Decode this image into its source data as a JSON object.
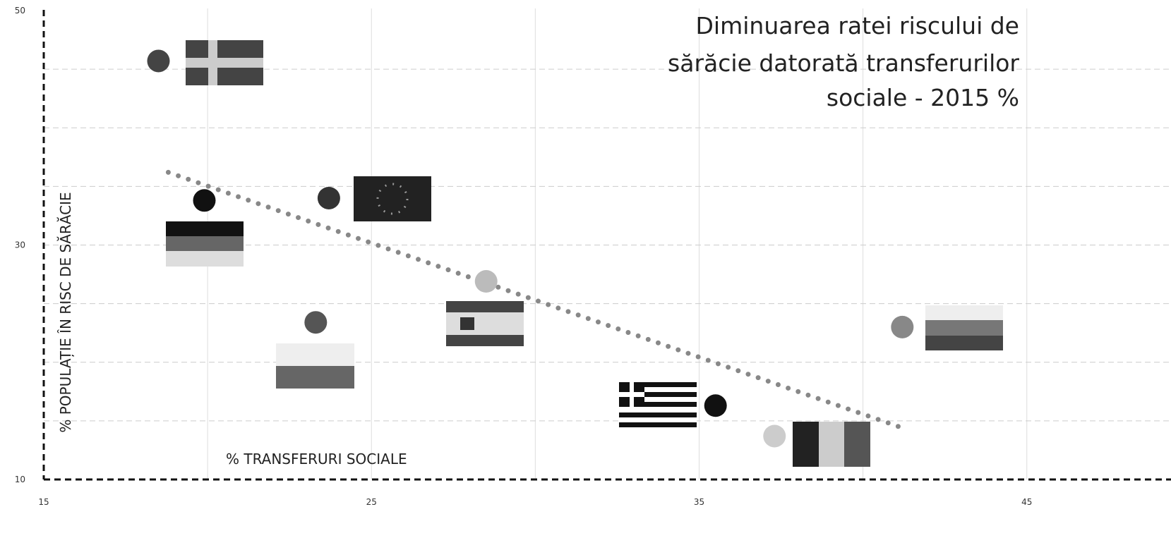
{
  "chart_data": {
    "type": "scatter",
    "title_lines": [
      "Diminuarea ratei riscului de",
      "sărăcie datorată transferurilor",
      "sociale - 2015 %"
    ],
    "x_label": "% TRANSFERURI SOCIALE",
    "y_label": "% POPULAȚIE ÎN RISC DE SĂRĂCIE",
    "x": [
      18.5,
      19.9,
      23.7,
      23.3,
      28.5,
      35.5,
      37.3,
      41.2
    ],
    "y": [
      45.7,
      33.8,
      34.0,
      23.4,
      26.9,
      16.3,
      13.7,
      23.0
    ],
    "colors": [
      "#444444",
      "#111111",
      "#333333",
      "#555555",
      "#bbbbbb",
      "#111111",
      "#cccccc",
      "#888888"
    ],
    "trendline": {
      "x": [
        18.8,
        41.1
      ],
      "y": [
        36.2,
        14.5
      ],
      "color": "#888888"
    },
    "xlim": [
      15,
      49.4
    ],
    "ylim": [
      10,
      50.9
    ],
    "xticks": [
      15,
      25,
      35,
      45
    ],
    "yticks": [
      10,
      30,
      50
    ],
    "xgrid": [
      20,
      25,
      30,
      35,
      40,
      45
    ],
    "ygrid": [
      15,
      20,
      25,
      30,
      35,
      40,
      45
    ],
    "grid": true
  }
}
